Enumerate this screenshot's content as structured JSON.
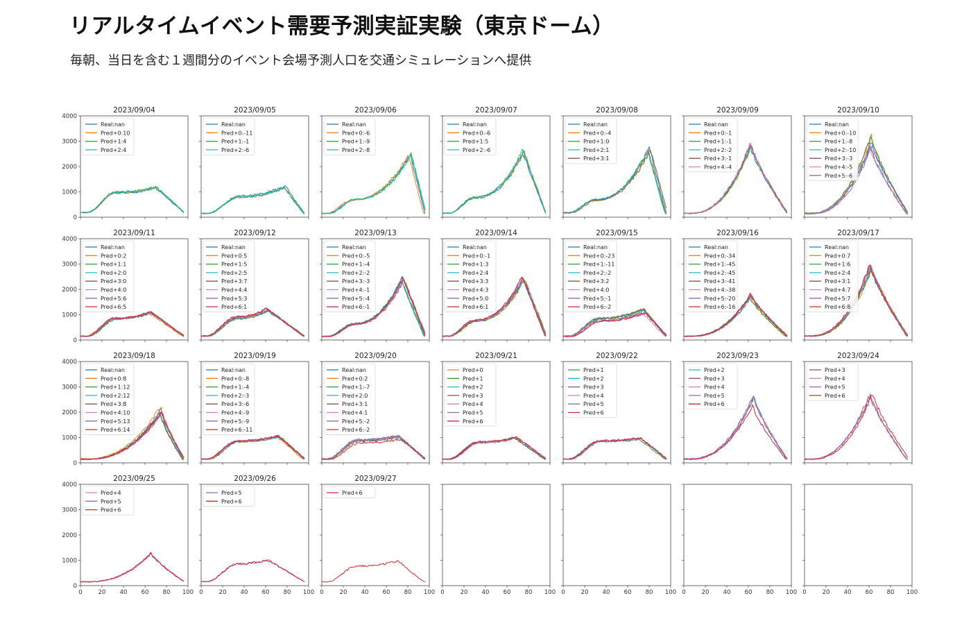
{
  "header": {
    "title": "リアルタイムイベント需要予測実証実験（東京ドーム）",
    "subtitle": "毎朝、当日を含む１週間分のイベント会場予測人口を交通シミュレーションへ提供"
  },
  "colors": {
    "Real": "#1f77b4",
    "Pred+0": "#ff7f0e",
    "Pred+1": "#2ca02c",
    "Pred+2": "#17becf",
    "Pred+3": "#8c564b",
    "Pred+4": "#e377c2",
    "Pred+5": "#9467bd",
    "Pred+6": "#d62728"
  },
  "chart_data": {
    "type": "line",
    "layout": "grid of small multiples",
    "xlim": [
      0,
      100
    ],
    "ylim": [
      0,
      4000
    ],
    "xticks": [
      0,
      20,
      40,
      60,
      80,
      100
    ],
    "yticks": [
      0,
      1000,
      2000,
      3000,
      4000
    ],
    "grid": false,
    "legend_position": "upper-left",
    "panels": [
      {
        "title": "2023/09/04",
        "legend": [
          "Real:nan",
          "Pred+0:10",
          "Pred+1:4",
          "Pred+2:4"
        ],
        "series": [
          "Real",
          "Pred+0",
          "Pred+1",
          "Pred+2"
        ],
        "profile": {
          "base": 180,
          "plateau": 950,
          "plateau_start": 32,
          "peak": 1150,
          "peak_at": 70,
          "end": 180
        }
      },
      {
        "title": "2023/09/05",
        "legend": [
          "Real:nan",
          "Pred+0:-11",
          "Pred+1:-1",
          "Pred+2:-6"
        ],
        "series": [
          "Real",
          "Pred+0",
          "Pred+1",
          "Pred+2"
        ],
        "profile": {
          "base": 150,
          "plateau": 850,
          "plateau_start": 36,
          "peak": 1250,
          "peak_at": 78,
          "end": 150
        }
      },
      {
        "title": "2023/09/06",
        "legend": [
          "Real:nan",
          "Pred+0:-6",
          "Pred+1:-9",
          "Pred+2:-8"
        ],
        "series": [
          "Real",
          "Pred+0",
          "Pred+1",
          "Pred+2"
        ],
        "profile": {
          "base": 150,
          "plateau": 700,
          "plateau_start": 30,
          "peak": 2500,
          "peak_at": 82,
          "end": 150
        }
      },
      {
        "title": "2023/09/07",
        "legend": [
          "Real:nan",
          "Pred+0:-6",
          "Pred+1:5",
          "Pred+2:-6"
        ],
        "series": [
          "Real",
          "Pred+0",
          "Pred+1",
          "Pred+2"
        ],
        "profile": {
          "base": 150,
          "plateau": 750,
          "plateau_start": 30,
          "peak": 2500,
          "peak_at": 75,
          "end": 150
        }
      },
      {
        "title": "2023/09/08",
        "legend": [
          "Real:nan",
          "Pred+0:-4",
          "Pred+1:0",
          "Pred+2:1",
          "Pred+3:1"
        ],
        "series": [
          "Real",
          "Pred+0",
          "Pred+1",
          "Pred+2",
          "Pred+3"
        ],
        "profile": {
          "base": 180,
          "plateau": 700,
          "plateau_start": 30,
          "peak": 2750,
          "peak_at": 80,
          "end": 150
        }
      },
      {
        "title": "2023/09/09",
        "legend": [
          "Real:nan",
          "Pred+0:-1",
          "Pred+1:-1",
          "Pred+2:-2",
          "Pred+3:-1",
          "Pred+4:-4"
        ],
        "series": [
          "Real",
          "Pred+0",
          "Pred+1",
          "Pred+2",
          "Pred+3",
          "Pred+4"
        ],
        "profile": {
          "base": 150,
          "plateau": 0,
          "plateau_start": 0,
          "peak": 2800,
          "peak_at": 62,
          "end": 150
        }
      },
      {
        "title": "2023/09/10",
        "legend": [
          "Real:nan",
          "Pred+0:-10",
          "Pred+1:-8",
          "Pred+2:-10",
          "Pred+3:-3",
          "Pred+4:-5",
          "Pred+5:-6"
        ],
        "series": [
          "Real",
          "Pred+0",
          "Pred+1",
          "Pred+2",
          "Pred+3",
          "Pred+4",
          "Pred+5"
        ],
        "profile": {
          "base": 150,
          "plateau": 0,
          "plateau_start": 0,
          "peak": 3000,
          "peak_at": 62,
          "end": 150
        }
      },
      {
        "title": "2023/09/11",
        "legend": [
          "Real:nan",
          "Pred+0:2",
          "Pred+1:1",
          "Pred+2:0",
          "Pred+3:0",
          "Pred+4:0",
          "Pred+5:6",
          "Pred+6:5"
        ],
        "series": [
          "Real",
          "Pred+0",
          "Pred+1",
          "Pred+2",
          "Pred+3",
          "Pred+4",
          "Pred+5",
          "Pred+6"
        ],
        "profile": {
          "base": 150,
          "plateau": 850,
          "plateau_start": 32,
          "peak": 1100,
          "peak_at": 65,
          "end": 150
        }
      },
      {
        "title": "2023/09/12",
        "legend": [
          "Real:nan",
          "Pred+0:5",
          "Pred+1:5",
          "Pred+2:5",
          "Pred+3:7",
          "Pred+4:4",
          "Pred+5:3",
          "Pred+6:1"
        ],
        "series": [
          "Real",
          "Pred+0",
          "Pred+1",
          "Pred+2",
          "Pred+3",
          "Pred+4",
          "Pred+5",
          "Pred+6"
        ],
        "profile": {
          "base": 150,
          "plateau": 850,
          "plateau_start": 34,
          "peak": 1150,
          "peak_at": 62,
          "end": 150
        }
      },
      {
        "title": "2023/09/13",
        "legend": [
          "Real:nan",
          "Pred+0:-5",
          "Pred+1:-4",
          "Pred+2:-2",
          "Pred+3:-3",
          "Pred+4:-1",
          "Pred+5:-4",
          "Pred+6:-1"
        ],
        "series": [
          "Real",
          "Pred+0",
          "Pred+1",
          "Pred+2",
          "Pred+3",
          "Pred+4",
          "Pred+5",
          "Pred+6"
        ],
        "profile": {
          "base": 150,
          "plateau": 650,
          "plateau_start": 30,
          "peak": 2500,
          "peak_at": 75,
          "end": 150
        }
      },
      {
        "title": "2023/09/14",
        "legend": [
          "Real:nan",
          "Pred+0:-1",
          "Pred+1:3",
          "Pred+2:4",
          "Pred+3:3",
          "Pred+4:3",
          "Pred+5:0",
          "Pred+6:1"
        ],
        "series": [
          "Real",
          "Pred+0",
          "Pred+1",
          "Pred+2",
          "Pred+3",
          "Pred+4",
          "Pred+5",
          "Pred+6"
        ],
        "profile": {
          "base": 150,
          "plateau": 750,
          "plateau_start": 30,
          "peak": 2400,
          "peak_at": 75,
          "end": 150
        }
      },
      {
        "title": "2023/09/15",
        "legend": [
          "Real:nan",
          "Pred+0:-23",
          "Pred+1:-11",
          "Pred+2:-2",
          "Pred+3:2",
          "Pred+4:0",
          "Pred+5:-1",
          "Pred+6:-2"
        ],
        "series": [
          "Real",
          "Pred+0",
          "Pred+1",
          "Pred+2",
          "Pred+3",
          "Pred+4",
          "Pred+5",
          "Pred+6"
        ],
        "profile": {
          "base": 150,
          "plateau": 800,
          "plateau_start": 34,
          "peak": 1150,
          "peak_at": 75,
          "end": 150
        }
      },
      {
        "title": "2023/09/16",
        "legend": [
          "Real:nan",
          "Pred+0:-34",
          "Pred+1:-45",
          "Pred+2:-45",
          "Pred+3:-41",
          "Pred+4:-38",
          "Pred+5:-20",
          "Pred+6:-16"
        ],
        "series": [
          "Real",
          "Pred+0",
          "Pred+1",
          "Pred+2",
          "Pred+3",
          "Pred+4",
          "Pred+5",
          "Pred+6"
        ],
        "profile": {
          "base": 150,
          "plateau": 0,
          "plateau_start": 0,
          "peak": 1800,
          "peak_at": 62,
          "end": 150
        }
      },
      {
        "title": "2023/09/17",
        "legend": [
          "Real:nan",
          "Pred+0:7",
          "Pred+1:6",
          "Pred+2:4",
          "Pred+3:1",
          "Pred+4:7",
          "Pred+5:7",
          "Pred+6:8"
        ],
        "series": [
          "Real",
          "Pred+0",
          "Pred+1",
          "Pred+2",
          "Pred+3",
          "Pred+4",
          "Pred+5",
          "Pred+6"
        ],
        "profile": {
          "base": 150,
          "plateau": 0,
          "plateau_start": 0,
          "peak": 2800,
          "peak_at": 62,
          "end": 150
        }
      },
      {
        "title": "2023/09/18",
        "legend": [
          "Real:nan",
          "Pred+0:8",
          "Pred+1:12",
          "Pred+2:12",
          "Pred+3:8",
          "Pred+4:10",
          "Pred+5:13",
          "Pred+6:14"
        ],
        "series": [
          "Real",
          "Pred+0",
          "Pred+1",
          "Pred+2",
          "Pred+3",
          "Pred+4",
          "Pred+5",
          "Pred+6"
        ],
        "profile": {
          "base": 150,
          "plateau": 0,
          "plateau_start": 0,
          "peak": 2100,
          "peak_at": 75,
          "end": 150
        }
      },
      {
        "title": "2023/09/19",
        "legend": [
          "Real:nan",
          "Pred+0:-8",
          "Pred+1:-4",
          "Pred+2:-3",
          "Pred+3:-6",
          "Pred+4:-9",
          "Pred+5:-9",
          "Pred+6:-11"
        ],
        "series": [
          "Real",
          "Pred+0",
          "Pred+1",
          "Pred+2",
          "Pred+3",
          "Pred+4",
          "Pred+5",
          "Pred+6"
        ],
        "profile": {
          "base": 150,
          "plateau": 850,
          "plateau_start": 34,
          "peak": 1050,
          "peak_at": 72,
          "end": 150
        }
      },
      {
        "title": "2023/09/20",
        "legend": [
          "Real:nan",
          "Pred+0:2",
          "Pred+1:-7",
          "Pred+2:0",
          "Pred+3:1",
          "Pred+4:1",
          "Pred+5:-2",
          "Pred+6:-2"
        ],
        "series": [
          "Real",
          "Pred+0",
          "Pred+1",
          "Pred+2",
          "Pred+3",
          "Pred+4",
          "Pred+5",
          "Pred+6"
        ],
        "profile": {
          "base": 150,
          "plateau": 850,
          "plateau_start": 34,
          "peak": 1000,
          "peak_at": 72,
          "end": 150
        }
      },
      {
        "title": "2023/09/21",
        "legend": [
          "Pred+0",
          "Pred+1",
          "Pred+2",
          "Pred+3",
          "Pred+4",
          "Pred+5",
          "Pred+6"
        ],
        "series": [
          "Pred+0",
          "Pred+1",
          "Pred+2",
          "Pred+3",
          "Pred+4",
          "Pred+5",
          "Pred+6"
        ],
        "profile": {
          "base": 150,
          "plateau": 850,
          "plateau_start": 34,
          "peak": 1050,
          "peak_at": 68,
          "end": 150
        }
      },
      {
        "title": "2023/09/22",
        "legend": [
          "Pred+1",
          "Pred+2",
          "Pred+3",
          "Pred+4",
          "Pred+5",
          "Pred+6"
        ],
        "series": [
          "Pred+1",
          "Pred+2",
          "Pred+3",
          "Pred+4",
          "Pred+5",
          "Pred+6"
        ],
        "profile": {
          "base": 150,
          "plateau": 850,
          "plateau_start": 34,
          "peak": 950,
          "peak_at": 72,
          "end": 150
        }
      },
      {
        "title": "2023/09/23",
        "legend": [
          "Pred+2",
          "Pred+3",
          "Pred+4",
          "Pred+5",
          "Pred+6"
        ],
        "series": [
          "Pred+2",
          "Pred+3",
          "Pred+4",
          "Pred+5",
          "Pred+6"
        ],
        "profile": {
          "base": 150,
          "plateau": 0,
          "plateau_start": 0,
          "peak": 2450,
          "peak_at": 65,
          "end": 150
        }
      },
      {
        "title": "2023/09/24",
        "legend": [
          "Pred+3",
          "Pred+4",
          "Pred+5",
          "Pred+6"
        ],
        "series": [
          "Pred+3",
          "Pred+4",
          "Pred+5",
          "Pred+6"
        ],
        "profile": {
          "base": 150,
          "plateau": 0,
          "plateau_start": 0,
          "peak": 2800,
          "peak_at": 62,
          "end": 150
        }
      },
      {
        "title": "2023/09/25",
        "legend": [
          "Pred+4",
          "Pred+5",
          "Pred+6"
        ],
        "series": [
          "Pred+4",
          "Pred+5",
          "Pred+6"
        ],
        "profile": {
          "base": 150,
          "plateau": 0,
          "plateau_start": 0,
          "peak": 1250,
          "peak_at": 65,
          "end": 150
        }
      },
      {
        "title": "2023/09/26",
        "legend": [
          "Pred+5",
          "Pred+6"
        ],
        "series": [
          "Pred+5",
          "Pred+6"
        ],
        "profile": {
          "base": 150,
          "plateau": 800,
          "plateau_start": 34,
          "peak": 950,
          "peak_at": 62,
          "end": 150
        }
      },
      {
        "title": "2023/09/27",
        "legend": [
          "Pred+6"
        ],
        "series": [
          "Pred+6"
        ],
        "profile": {
          "base": 150,
          "plateau": 800,
          "plateau_start": 34,
          "peak": 1000,
          "peak_at": 72,
          "end": 150
        }
      },
      {
        "title": "",
        "legend": [],
        "series": []
      },
      {
        "title": "",
        "legend": [],
        "series": []
      },
      {
        "title": "",
        "legend": [],
        "series": []
      },
      {
        "title": "",
        "legend": [],
        "series": []
      }
    ]
  }
}
